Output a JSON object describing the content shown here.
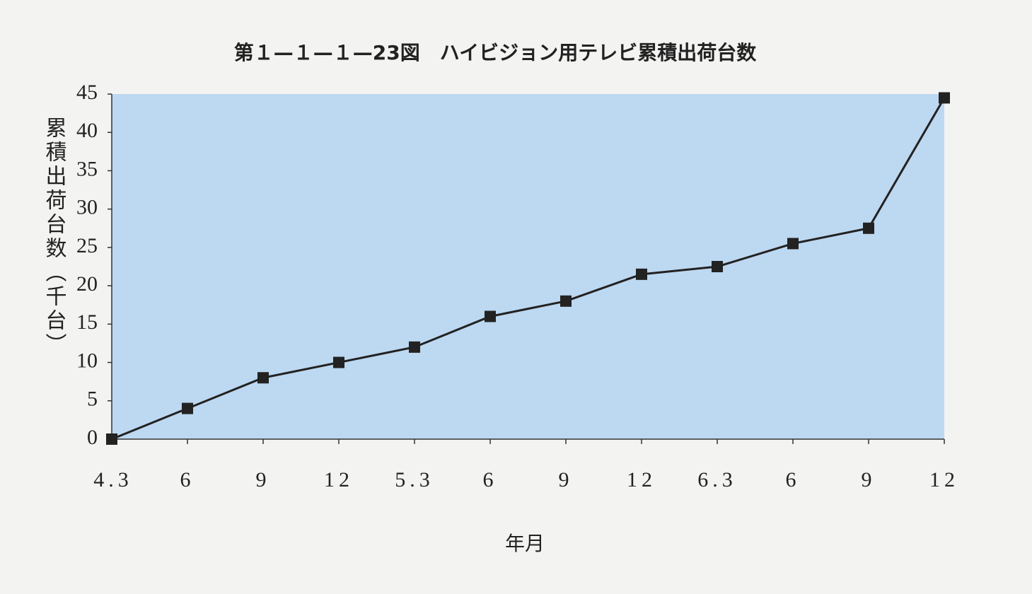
{
  "chart_data": {
    "type": "line",
    "title": "第１—１—１—23図　ハイビジョン用テレビ累積出荷台数",
    "y_label": "累積出荷台数（千台）",
    "x_label": "年月",
    "categories": [
      "4.3",
      "6",
      "9",
      "12",
      "5.3",
      "6",
      "9",
      "12",
      "6.3",
      "6",
      "9",
      "12"
    ],
    "series": [
      {
        "name": "累積出荷台数",
        "color": "#222222",
        "values": [
          0,
          4,
          8,
          10,
          12,
          16,
          18,
          21.5,
          22.5,
          25.5,
          27.5,
          44.5
        ]
      }
    ],
    "ylim": [
      0,
      45
    ],
    "yticks": [
      0,
      5,
      10,
      15,
      20,
      25,
      30,
      35,
      40,
      45
    ],
    "plot_color": "#bdd8f1",
    "grid": false
  }
}
